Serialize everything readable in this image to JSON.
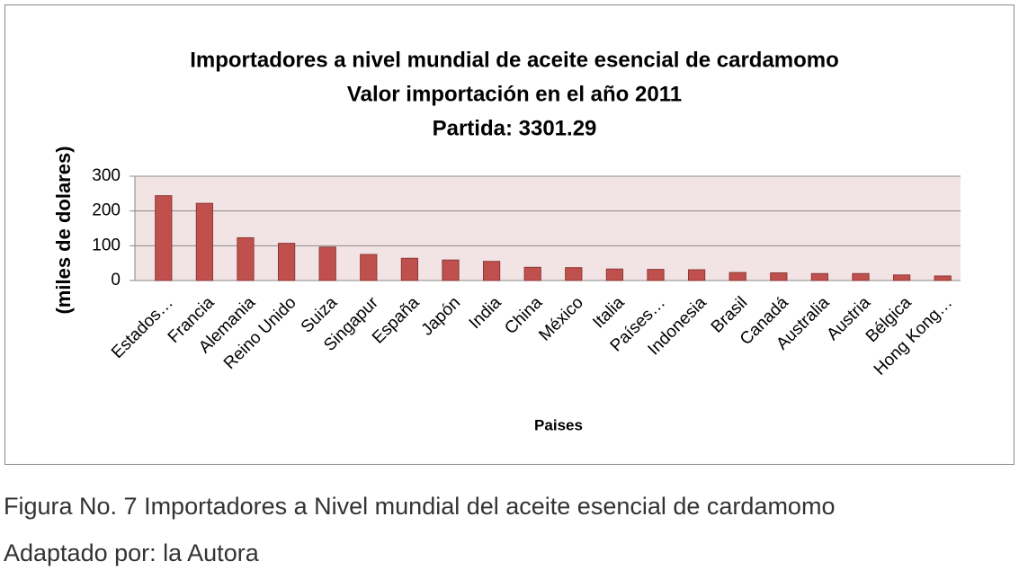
{
  "chart_data": {
    "type": "bar",
    "title": [
      "Importadores a nivel mundial de aceite esencial de cardamomo",
      "Valor importación en el año 2011",
      "Partida: 3301.29"
    ],
    "y_label": "(miles de dolares)",
    "x_label": "Paises",
    "categories": [
      "Estados…",
      "Francia",
      "Alemania",
      "Reino Unido",
      "Suiza",
      "Singapur",
      "España",
      "Japón",
      "India",
      "China",
      "México",
      "Italia",
      "Países…",
      "Indonesia",
      "Brasil",
      "Canadá",
      "Australia",
      "Austria",
      "Bélgica",
      "Hong Kong…"
    ],
    "values": [
      244,
      222,
      123,
      107,
      96,
      75,
      64,
      59,
      55,
      38,
      37,
      33,
      32,
      31,
      23,
      22,
      20,
      20,
      16,
      13
    ],
    "color": "#c0504d",
    "ylim": [
      0,
      300
    ],
    "yticks": [
      0,
      100,
      200,
      300
    ],
    "grid": true
  },
  "caption": [
    "Figura No. 7 Importadores a Nivel mundial del aceite esencial de cardamomo",
    "Adaptado por: la Autora"
  ]
}
